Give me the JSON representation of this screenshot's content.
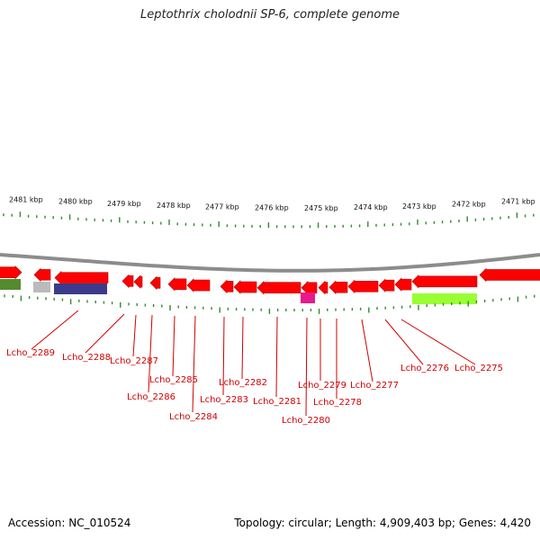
{
  "title": "Leptothrix cholodnii SP-6, complete genome",
  "footer": {
    "accession": "Accession: NC_010524",
    "summary": "Topology: circular; Length: 4,909,403 bp; Genes: 4,420"
  },
  "colors": {
    "cds": "#ff0000",
    "backbone": "#8c8c8c",
    "tick": "#2e8b2e",
    "label": "#d00000",
    "rrna_or_misc": "#e8198b",
    "cog_green": "#99ff33",
    "cog_olive": "#558b2f",
    "cog_navy": "#3b3b8c",
    "cog_gray": "#bbbbbb"
  },
  "scale_labels": [
    "2481 kbp",
    "2480 kbp",
    "2479 kbp",
    "2478 kbp",
    "2477 kbp",
    "2476 kbp",
    "2475 kbp",
    "2474 kbp",
    "2473 kbp",
    "2472 kbp",
    "2471 kbp"
  ],
  "gene_labels": [
    "Lcho_2289",
    "Lcho_2288",
    "Lcho_2287",
    "Lcho_2286",
    "Lcho_2285",
    "Lcho_2284",
    "Lcho_2283",
    "Lcho_2282",
    "Lcho_2281",
    "Lcho_2280",
    "Lcho_2279",
    "Lcho_2278",
    "Lcho_2277",
    "Lcho_2276",
    "Lcho_2275"
  ]
}
